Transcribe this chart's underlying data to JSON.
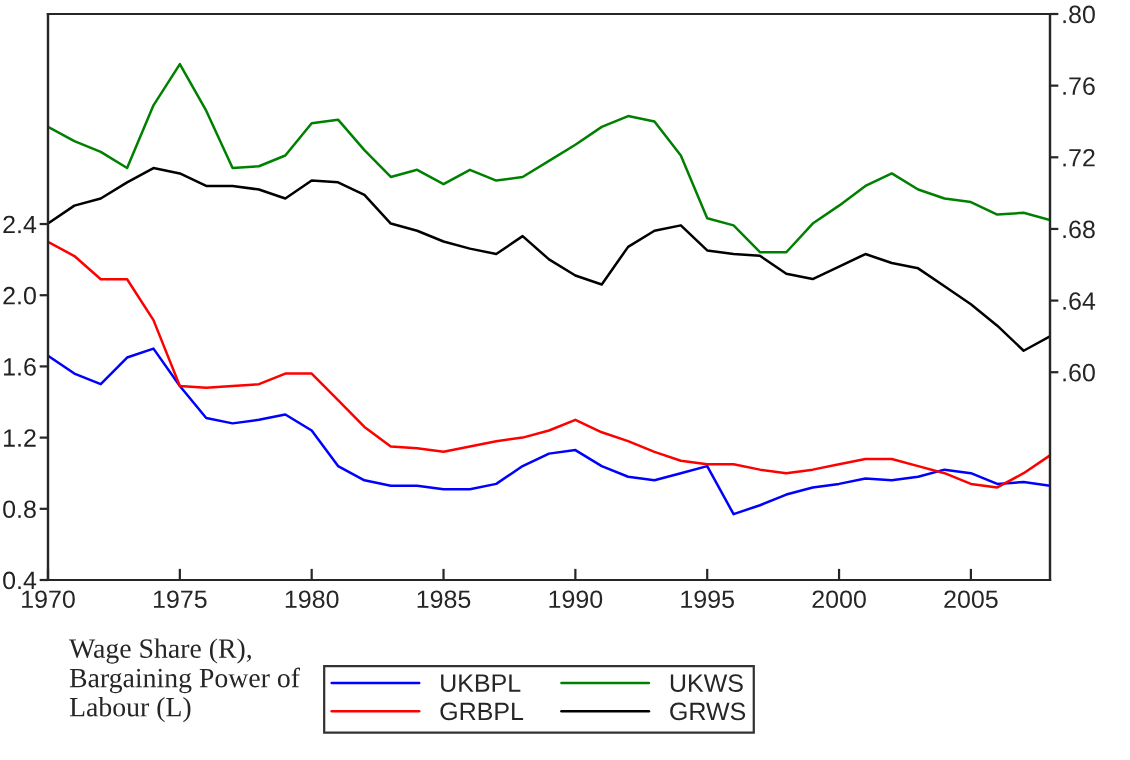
{
  "chart_data": {
    "type": "line",
    "x": [
      1970,
      1971,
      1972,
      1973,
      1974,
      1975,
      1976,
      1977,
      1978,
      1979,
      1980,
      1981,
      1982,
      1983,
      1984,
      1985,
      1986,
      1987,
      1988,
      1989,
      1990,
      1991,
      1992,
      1993,
      1994,
      1995,
      1996,
      1997,
      1998,
      1999,
      2000,
      2001,
      2002,
      2003,
      2004,
      2005,
      2006,
      2007,
      2008
    ],
    "series": [
      {
        "name": "UKBPL",
        "color": "#0000ff",
        "values": [
          1.66,
          1.56,
          1.5,
          1.65,
          1.7,
          1.49,
          1.31,
          1.28,
          1.3,
          1.33,
          1.24,
          1.04,
          0.96,
          0.93,
          0.93,
          0.91,
          0.91,
          0.94,
          1.04,
          1.11,
          1.13,
          1.04,
          0.98,
          0.96,
          1.0,
          1.04,
          0.77,
          0.82,
          0.88,
          0.92,
          0.94,
          0.97,
          0.96,
          0.98,
          1.02,
          1.0,
          0.94,
          0.95,
          0.93
        ]
      },
      {
        "name": "GRBPL",
        "color": "#ff0000",
        "values": [
          2.3,
          2.22,
          2.09,
          2.09,
          1.86,
          1.49,
          1.48,
          1.49,
          1.5,
          1.56,
          1.56,
          1.41,
          1.26,
          1.15,
          1.14,
          1.12,
          1.15,
          1.18,
          1.2,
          1.24,
          1.3,
          1.23,
          1.18,
          1.12,
          1.07,
          1.05,
          1.05,
          1.02,
          1.0,
          1.02,
          1.05,
          1.08,
          1.08,
          1.04,
          1.0,
          0.94,
          0.92,
          1.0,
          1.1
        ]
      },
      {
        "name": "UKWS",
        "color": "#008000",
        "axis": "y2",
        "values": [
          0.737,
          0.729,
          0.723,
          0.714,
          0.749,
          0.772,
          0.746,
          0.714,
          0.715,
          0.721,
          0.739,
          0.741,
          0.724,
          0.709,
          0.713,
          0.705,
          0.713,
          0.707,
          0.709,
          0.718,
          0.727,
          0.737,
          0.743,
          0.74,
          0.721,
          0.686,
          0.682,
          0.667,
          0.667,
          0.683,
          0.693,
          0.704,
          0.711,
          0.702,
          0.697,
          0.695,
          0.688,
          0.689,
          0.685
        ]
      },
      {
        "name": "GRWS",
        "color": "#000000",
        "axis": "y2",
        "values": [
          0.683,
          0.693,
          0.697,
          0.706,
          0.714,
          0.711,
          0.704,
          0.704,
          0.702,
          0.697,
          0.707,
          0.706,
          0.699,
          0.683,
          0.679,
          0.673,
          0.669,
          0.666,
          0.676,
          0.663,
          0.654,
          0.649,
          0.67,
          0.679,
          0.682,
          0.668,
          0.666,
          0.665,
          0.655,
          0.652,
          0.659,
          0.666,
          0.661,
          0.658,
          0.648,
          0.638,
          0.626,
          0.612,
          0.62
        ]
      }
    ],
    "xlim": [
      1970,
      2008
    ],
    "xticks": [
      1970,
      1975,
      1980,
      1985,
      1990,
      1995,
      2000,
      2005
    ],
    "ylim": [
      0.4,
      3.58
    ],
    "yticks": [
      0.4,
      0.8,
      1.2,
      1.6,
      {
        "value": 2.0,
        "label": "2.0"
      },
      2.4
    ],
    "y2lim": [
      0.484,
      0.8
    ],
    "y2ticks": [
      {
        "value": 0.6,
        "label": ".60"
      },
      {
        "value": 0.64,
        "label": ".64"
      },
      {
        "value": 0.68,
        "label": ".68"
      },
      {
        "value": 0.72,
        "label": ".72"
      },
      {
        "value": 0.76,
        "label": ".76"
      },
      {
        "value": 0.8,
        "label": ".80"
      }
    ],
    "annotations": [
      "Wage Share (R), Bargaining Power of Labour (L)"
    ],
    "legend": "bottom",
    "grid": false
  }
}
